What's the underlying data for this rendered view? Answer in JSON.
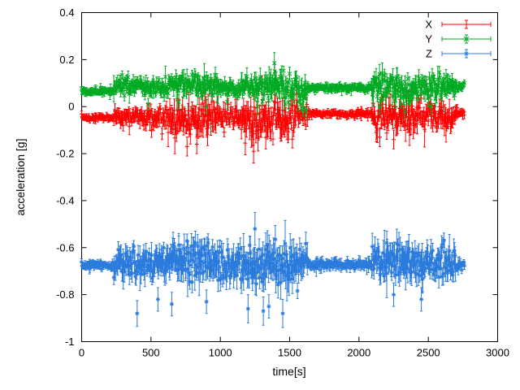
{
  "page": {
    "background": "#ffffff",
    "foreground": "#000000"
  },
  "chart_data": {
    "type": "scatter",
    "style": "gnuplot points with y-error-bars",
    "title": "",
    "xlabel": "time[s]",
    "ylabel": "acceleration [g]",
    "xlim": [
      0,
      3000
    ],
    "ylim": [
      -1,
      0.4
    ],
    "xticks": [
      0,
      500,
      1000,
      1500,
      2000,
      2500,
      3000
    ],
    "yticks": [
      -1,
      -0.8,
      -0.6,
      -0.4,
      -0.2,
      0,
      0.2,
      0.4
    ],
    "grid": false,
    "legend_position": "top-right-inside",
    "time_range_s": [
      0,
      2760
    ],
    "time_step_s": 4,
    "seed": 7,
    "series": [
      {
        "name": "X",
        "color": "#ff0000",
        "marker": "plus",
        "baseline_g": -0.05,
        "segments": [
          {
            "t0": 0,
            "t1": 230,
            "mean": -0.048,
            "sigma": 0.006,
            "err": 0.012
          },
          {
            "t0": 230,
            "t1": 620,
            "mean": -0.04,
            "sigma": 0.02,
            "err": 0.03
          },
          {
            "t0": 620,
            "t1": 980,
            "mean": -0.05,
            "sigma": 0.032,
            "err": 0.045
          },
          {
            "t0": 980,
            "t1": 1150,
            "mean": -0.042,
            "sigma": 0.02,
            "err": 0.03
          },
          {
            "t0": 1150,
            "t1": 1560,
            "mean": -0.055,
            "sigma": 0.038,
            "err": 0.05
          },
          {
            "t0": 1560,
            "t1": 1630,
            "mean": -0.04,
            "sigma": 0.018,
            "err": 0.028
          },
          {
            "t0": 1630,
            "t1": 2090,
            "mean": -0.03,
            "sigma": 0.007,
            "err": 0.014
          },
          {
            "t0": 2090,
            "t1": 2400,
            "mean": -0.045,
            "sigma": 0.03,
            "err": 0.042
          },
          {
            "t0": 2400,
            "t1": 2700,
            "mean": -0.042,
            "sigma": 0.026,
            "err": 0.038
          },
          {
            "t0": 2700,
            "t1": 2761,
            "mean": -0.028,
            "sigma": 0.007,
            "err": 0.014
          }
        ],
        "outliers": [
          [
            760,
            -0.17,
            0.04
          ],
          [
            830,
            -0.16,
            0.04
          ],
          [
            1180,
            -0.155,
            0.05
          ],
          [
            1240,
            -0.19,
            0.05
          ],
          [
            1300,
            0.09,
            0.04
          ],
          [
            1395,
            0.1,
            0.05
          ],
          [
            2150,
            -0.13,
            0.04
          ],
          [
            2250,
            -0.14,
            0.04
          ]
        ]
      },
      {
        "name": "Y",
        "color": "#00aa22",
        "marker": "cross",
        "baseline_g": 0.08,
        "segments": [
          {
            "t0": 0,
            "t1": 230,
            "mean": 0.065,
            "sigma": 0.006,
            "err": 0.012
          },
          {
            "t0": 230,
            "t1": 620,
            "mean": 0.085,
            "sigma": 0.017,
            "err": 0.026
          },
          {
            "t0": 620,
            "t1": 980,
            "mean": 0.09,
            "sigma": 0.02,
            "err": 0.03
          },
          {
            "t0": 980,
            "t1": 1150,
            "mean": 0.082,
            "sigma": 0.017,
            "err": 0.026
          },
          {
            "t0": 1150,
            "t1": 1560,
            "mean": 0.08,
            "sigma": 0.024,
            "err": 0.034
          },
          {
            "t0": 1560,
            "t1": 1630,
            "mean": 0.05,
            "sigma": 0.028,
            "err": 0.038
          },
          {
            "t0": 1630,
            "t1": 2090,
            "mean": 0.08,
            "sigma": 0.007,
            "err": 0.014
          },
          {
            "t0": 2090,
            "t1": 2400,
            "mean": 0.075,
            "sigma": 0.026,
            "err": 0.038
          },
          {
            "t0": 2400,
            "t1": 2700,
            "mean": 0.08,
            "sigma": 0.024,
            "err": 0.034
          },
          {
            "t0": 2700,
            "t1": 2761,
            "mean": 0.085,
            "sigma": 0.007,
            "err": 0.014
          }
        ],
        "outliers": [
          [
            480,
            0.01,
            0.025
          ],
          [
            700,
            0.02,
            0.03
          ],
          [
            900,
            0.0,
            0.03
          ],
          [
            1050,
            0.02,
            0.03
          ],
          [
            1270,
            0.0,
            0.035
          ],
          [
            1390,
            0.185,
            0.045
          ],
          [
            1392,
            0.15,
            0.03
          ],
          [
            1600,
            -0.01,
            0.03
          ],
          [
            2150,
            0.0,
            0.03
          ],
          [
            2330,
            -0.02,
            0.03
          ],
          [
            2520,
            0.0,
            0.03
          ]
        ]
      },
      {
        "name": "Z",
        "color": "#2b7bdd",
        "marker": "asterisk",
        "baseline_g": -0.67,
        "segments": [
          {
            "t0": 0,
            "t1": 230,
            "mean": -0.675,
            "sigma": 0.008,
            "err": 0.015
          },
          {
            "t0": 230,
            "t1": 620,
            "mean": -0.67,
            "sigma": 0.032,
            "err": 0.05
          },
          {
            "t0": 620,
            "t1": 980,
            "mean": -0.66,
            "sigma": 0.042,
            "err": 0.06
          },
          {
            "t0": 980,
            "t1": 1150,
            "mean": -0.67,
            "sigma": 0.038,
            "err": 0.052
          },
          {
            "t0": 1150,
            "t1": 1560,
            "mean": -0.68,
            "sigma": 0.046,
            "err": 0.065
          },
          {
            "t0": 1560,
            "t1": 1630,
            "mean": -0.67,
            "sigma": 0.028,
            "err": 0.045
          },
          {
            "t0": 1630,
            "t1": 2090,
            "mean": -0.672,
            "sigma": 0.009,
            "err": 0.018
          },
          {
            "t0": 2090,
            "t1": 2400,
            "mean": -0.66,
            "sigma": 0.038,
            "err": 0.055
          },
          {
            "t0": 2400,
            "t1": 2700,
            "mean": -0.67,
            "sigma": 0.032,
            "err": 0.05
          },
          {
            "t0": 2700,
            "t1": 2761,
            "mean": -0.672,
            "sigma": 0.009,
            "err": 0.018
          }
        ],
        "outliers": [
          [
            400,
            -0.88,
            0.055
          ],
          [
            550,
            -0.82,
            0.05
          ],
          [
            650,
            -0.84,
            0.05
          ],
          [
            700,
            -0.59,
            0.05
          ],
          [
            820,
            -0.58,
            0.05
          ],
          [
            900,
            -0.83,
            0.05
          ],
          [
            1200,
            -0.86,
            0.06
          ],
          [
            1250,
            -0.52,
            0.07
          ],
          [
            1310,
            -0.87,
            0.06
          ],
          [
            1350,
            -0.85,
            0.05
          ],
          [
            1450,
            -0.88,
            0.06
          ],
          [
            2200,
            -0.58,
            0.05
          ],
          [
            2250,
            -0.8,
            0.05
          ],
          [
            2450,
            -0.82,
            0.05
          ]
        ]
      }
    ],
    "legend_entries": [
      "X",
      "Y",
      "Z"
    ]
  }
}
